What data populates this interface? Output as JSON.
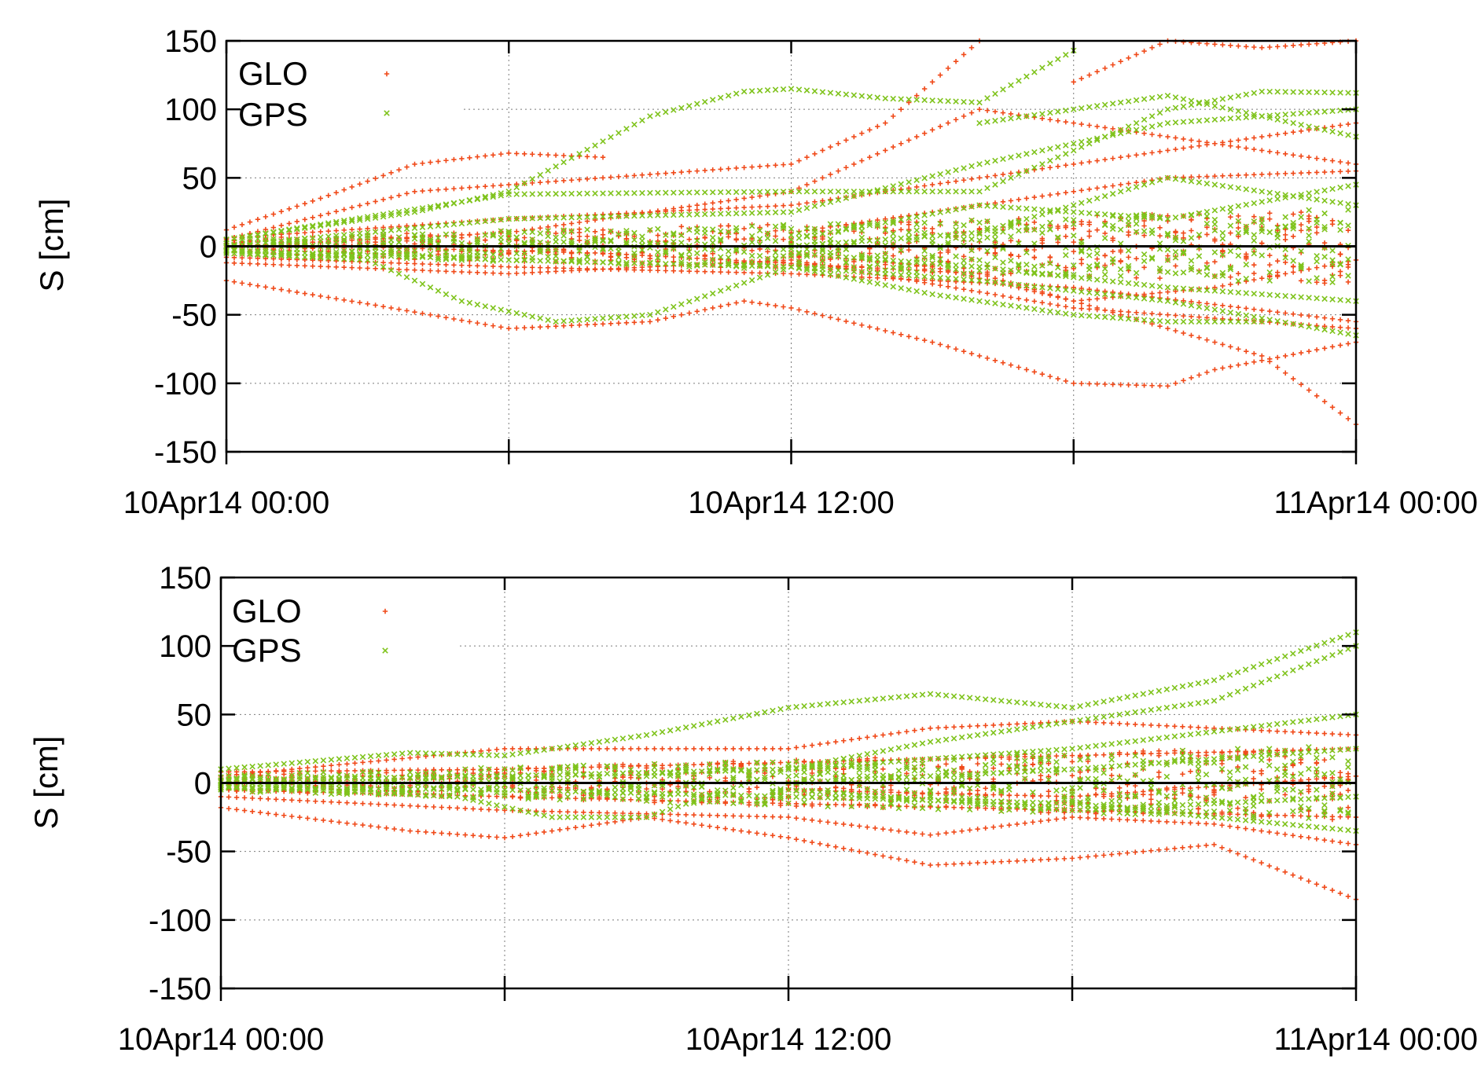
{
  "colors": {
    "glo": "#f04a1a",
    "gps": "#7fc31c",
    "grid": "#7a7a7a",
    "axis": "#000000",
    "zero": "#000000"
  },
  "chart_data": [
    {
      "type": "scatter",
      "title": "",
      "xlabel": "",
      "ylabel": "S [cm]",
      "ylim": [
        -150,
        150
      ],
      "yticks": [
        -150,
        -100,
        -50,
        0,
        50,
        100,
        150
      ],
      "yticklabels": [
        "-150",
        "-100",
        "-50",
        "0",
        "50",
        "100",
        "150"
      ],
      "xlim": [
        "2014-04-10 00:00",
        "2014-04-11 00:00"
      ],
      "xticks": [
        "2014-04-10 00:00",
        "2014-04-10 06:00",
        "2014-04-10 12:00",
        "2014-04-10 18:00",
        "2014-04-11 00:00"
      ],
      "xticklabels": [
        "10Apr14 00:00",
        "",
        "10Apr14 12:00",
        "",
        "11Apr14 00:00"
      ],
      "grid": true,
      "legend_position": "top-left",
      "series": [
        {
          "name": "GLO",
          "marker": "+",
          "color": "#f04a1a",
          "curves": [
            {
              "t": [
                0,
                3,
                6,
                9,
                11,
                12,
                15,
                18,
                20,
                21,
                24
              ],
              "y": [
                -25,
                -42,
                -60,
                -55,
                -40,
                -45,
                -70,
                -100,
                -102,
                -90,
                -70
              ]
            },
            {
              "t": [
                0,
                2,
                4,
                6,
                8
              ],
              "y": [
                12,
                35,
                60,
                68,
                65
              ]
            },
            {
              "t": [
                0,
                4,
                8,
                12,
                14,
                16
              ],
              "y": [
                5,
                40,
                50,
                60,
                90,
                150
              ]
            },
            {
              "t": [
                0,
                6,
                12,
                16,
                20,
                24
              ],
              "y": [
                0,
                10,
                40,
                100,
                80,
                60
              ]
            },
            {
              "t": [
                0,
                6,
                12,
                18,
                24
              ],
              "y": [
                -8,
                -15,
                -20,
                -30,
                -55
              ]
            },
            {
              "t": [
                0,
                6,
                12,
                18,
                24
              ],
              "y": [
                -12,
                -20,
                -10,
                -45,
                -60
              ]
            },
            {
              "t": [
                0,
                6,
                12,
                18,
                24
              ],
              "y": [
                6,
                20,
                30,
                60,
                90
              ]
            },
            {
              "t": [
                12,
                15,
                18,
                21,
                24
              ],
              "y": [
                -5,
                -15,
                -40,
                -30,
                -10
              ]
            },
            {
              "t": [
                12,
                16,
                20,
                24
              ],
              "y": [
                10,
                30,
                50,
                55
              ]
            },
            {
              "t": [
                0,
                8,
                16,
                22,
                24
              ],
              "y": [
                2,
                -5,
                -20,
                -80,
                -130
              ]
            },
            {
              "t": [
                18,
                20,
                22,
                24
              ],
              "y": [
                120,
                150,
                145,
                150
              ]
            }
          ]
        },
        {
          "name": "GPS",
          "marker": "x",
          "color": "#7fc31c",
          "curves": [
            {
              "t": [
                0,
                4,
                6,
                9,
                11,
                12,
                14,
                16,
                18
              ],
              "y": [
                5,
                25,
                40,
                95,
                113,
                115,
                108,
                105,
                143
              ]
            },
            {
              "t": [
                0,
                3,
                5,
                7,
                9,
                12,
                15,
                18,
                20,
                22
              ],
              "y": [
                -5,
                -10,
                -40,
                -55,
                -50,
                -15,
                -35,
                -50,
                -55,
                -55
              ]
            },
            {
              "t": [
                0,
                6,
                12,
                16,
                18,
                20,
                22,
                24
              ],
              "y": [
                5,
                38,
                40,
                40,
                70,
                100,
                113,
                112
              ]
            },
            {
              "t": [
                0,
                6,
                12,
                16,
                20,
                24
              ],
              "y": [
                0,
                20,
                25,
                60,
                90,
                100
              ]
            },
            {
              "t": [
                0,
                6,
                12,
                16,
                20,
                24
              ],
              "y": [
                -3,
                -10,
                -15,
                -25,
                -40,
                -65
              ]
            },
            {
              "t": [
                12,
                16,
                20,
                24
              ],
              "y": [
                0,
                10,
                50,
                30
              ]
            },
            {
              "t": [
                12,
                16,
                20,
                24
              ],
              "y": [
                -5,
                -15,
                -30,
                -40
              ]
            },
            {
              "t": [
                16,
                20,
                24
              ],
              "y": [
                90,
                110,
                80
              ]
            },
            {
              "t": [
                12,
                16,
                20,
                24
              ],
              "y": [
                5,
                30,
                20,
                45
              ]
            }
          ]
        }
      ]
    },
    {
      "type": "scatter",
      "title": "",
      "xlabel": "",
      "ylabel": "S [cm]",
      "ylim": [
        -150,
        150
      ],
      "yticks": [
        -150,
        -100,
        -50,
        0,
        50,
        100,
        150
      ],
      "yticklabels": [
        "-150",
        "-100",
        "-50",
        "0",
        "50",
        "100",
        "150"
      ],
      "xlim": [
        "2014-04-10 00:00",
        "2014-04-11 00:00"
      ],
      "xticks": [
        "2014-04-10 00:00",
        "2014-04-10 06:00",
        "2014-04-10 12:00",
        "2014-04-10 18:00",
        "2014-04-11 00:00"
      ],
      "xticklabels": [
        "10Apr14 00:00",
        "",
        "10Apr14 12:00",
        "",
        "11Apr14 00:00"
      ],
      "grid": true,
      "legend_position": "top-left",
      "series": [
        {
          "name": "GLO",
          "marker": "+",
          "color": "#f04a1a",
          "curves": [
            {
              "t": [
                0,
                4,
                6,
                9,
                12,
                15,
                18,
                21,
                24
              ],
              "y": [
                -18,
                -35,
                -40,
                -25,
                -40,
                -60,
                -55,
                -45,
                -85
              ]
            },
            {
              "t": [
                0,
                6,
                12,
                15,
                18,
                21,
                24
              ],
              "y": [
                -10,
                -20,
                -25,
                -38,
                -25,
                -30,
                -45
              ]
            },
            {
              "t": [
                0,
                6,
                12,
                15,
                18,
                21,
                24
              ],
              "y": [
                5,
                25,
                25,
                40,
                45,
                40,
                35
              ]
            },
            {
              "t": [
                0,
                6,
                12,
                18,
                24
              ],
              "y": [
                -5,
                -10,
                -15,
                -20,
                -25
              ]
            },
            {
              "t": [
                0,
                6,
                12,
                18,
                24
              ],
              "y": [
                8,
                10,
                15,
                20,
                25
              ]
            },
            {
              "t": [
                12,
                18,
                24
              ],
              "y": [
                -5,
                -10,
                5
              ]
            }
          ]
        },
        {
          "name": "GPS",
          "marker": "x",
          "color": "#7fc31c",
          "curves": [
            {
              "t": [
                0,
                4,
                6,
                9,
                12,
                15,
                18,
                21,
                24
              ],
              "y": [
                10,
                22,
                20,
                35,
                55,
                65,
                55,
                75,
                110
              ]
            },
            {
              "t": [
                0,
                5,
                7,
                9,
                12,
                15,
                18,
                21,
                24
              ],
              "y": [
                -2,
                -10,
                -25,
                -25,
                10,
                30,
                45,
                60,
                100
              ]
            },
            {
              "t": [
                0,
                6,
                12,
                18,
                24
              ],
              "y": [
                2,
                5,
                10,
                25,
                50
              ]
            },
            {
              "t": [
                0,
                6,
                12,
                18,
                24
              ],
              "y": [
                -3,
                -5,
                -10,
                -15,
                -35
              ]
            },
            {
              "t": [
                12,
                18,
                24
              ],
              "y": [
                0,
                10,
                25
              ]
            },
            {
              "t": [
                12,
                18,
                24
              ],
              "y": [
                -5,
                -20,
                -10
              ]
            }
          ]
        }
      ]
    }
  ]
}
